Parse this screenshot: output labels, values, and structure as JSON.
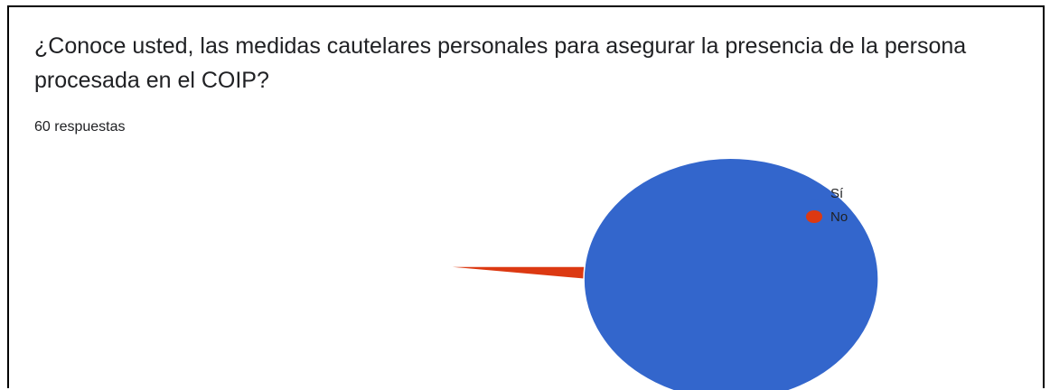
{
  "question": {
    "title": "¿Conoce usted, las medidas cautelares personales para asegurar la presencia de la persona procesada en el COIP?",
    "responses": "60 respuestas"
  },
  "chart_data": {
    "type": "pie",
    "categories": [
      "Sí",
      "No"
    ],
    "values": [
      98.3,
      1.7
    ],
    "colors": [
      "#3366cc",
      "#dc3912"
    ],
    "data_labels": [
      "98,3%"
    ],
    "legend_position": "right"
  }
}
